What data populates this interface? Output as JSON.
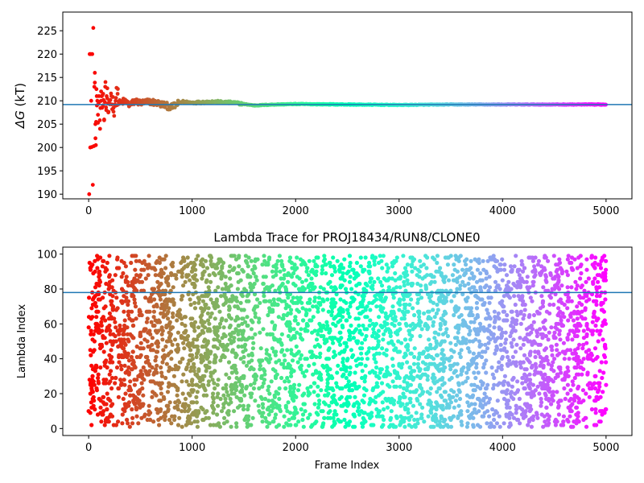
{
  "chart_data": [
    {
      "type": "scatter",
      "title": "",
      "xlabel": "",
      "ylabel_symbol": "ΔG",
      "ylabel_unit": "(kT)",
      "xlim": [
        -250,
        5250
      ],
      "ylim": [
        189,
        229
      ],
      "xticks": [
        0,
        1000,
        2000,
        3000,
        4000,
        5000
      ],
      "yticks": [
        190,
        195,
        200,
        205,
        210,
        215,
        220,
        225
      ],
      "colormap": "rainbow",
      "hline": 209.2,
      "hline_color": "#1f77b4",
      "grid": false,
      "series": [
        {
          "x": [
            5,
            10,
            15,
            20,
            25,
            30,
            35,
            40,
            45,
            50,
            55,
            60,
            65,
            70,
            75,
            80,
            90,
            100,
            110,
            120,
            130,
            140,
            150,
            160,
            170,
            180,
            190,
            200,
            220,
            240,
            260,
            280,
            300,
            350,
            400,
            450,
            500,
            600,
            700,
            800,
            900,
            1000,
            1200,
            1400,
            1600,
            1800,
            2000,
            2500,
            3000,
            3500,
            4000,
            4500,
            5000
          ],
          "y": [
            190.0,
            220.0,
            200.0,
            220.0,
            210.0,
            200.1,
            220.0,
            192.0,
            225.6,
            200.3,
            213.0,
            216.0,
            205.0,
            200.5,
            212.5,
            209.0,
            207.0,
            211.0,
            204.0,
            212.0,
            208.5,
            211.5,
            206.0,
            213.0,
            208.0,
            210.5,
            207.5,
            210.0,
            211.0,
            208.5,
            210.0,
            211.5,
            209.5,
            210.0,
            209.0,
            210.0,
            209.5,
            209.8,
            209.3,
            208.6,
            209.8,
            209.6,
            209.8,
            209.6,
            209.0,
            209.2,
            209.3,
            209.2,
            209.1,
            209.2,
            209.2,
            209.2,
            209.2
          ]
        }
      ]
    },
    {
      "type": "scatter",
      "title": "Lambda Trace for PROJ18434/RUN8/CLONE0",
      "xlabel": "Frame Index",
      "ylabel": "Lambda Index",
      "xlim": [
        -250,
        5250
      ],
      "ylim": [
        -4,
        104
      ],
      "xticks": [
        0,
        1000,
        2000,
        3000,
        4000,
        5000
      ],
      "yticks": [
        0,
        20,
        40,
        60,
        80,
        100
      ],
      "colormap": "rainbow",
      "hline": 78,
      "hline_color": "#1f77b4",
      "grid": false,
      "series": [
        {
          "x": [
            0,
            500,
            1000,
            1500,
            2000,
            2500,
            3000,
            3500,
            4000,
            4500,
            5000
          ],
          "y": [
            10,
            55,
            90,
            30,
            72,
            15,
            60,
            5,
            85,
            40,
            25
          ]
        }
      ]
    }
  ]
}
